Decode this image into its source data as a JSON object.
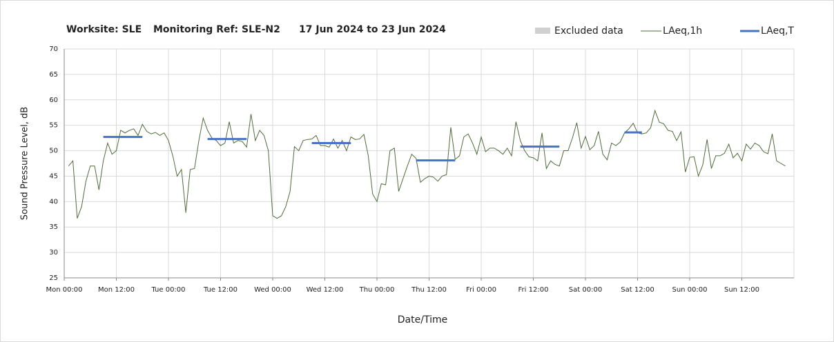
{
  "chart_data": {
    "type": "line",
    "title": [
      "Worksite: SLE",
      "Monitoring Ref: SLE-N2",
      "17 Jun 2024 to 23 Jun 2024"
    ],
    "x_label": "Date/Time",
    "y_label": "Sound Pressure Level, dB",
    "xlim": [
      0,
      168
    ],
    "xticks": [
      {
        "value": 0,
        "label": "Mon 00:00"
      },
      {
        "value": 12,
        "label": "Mon 12:00"
      },
      {
        "value": 24,
        "label": "Tue 00:00"
      },
      {
        "value": 36,
        "label": "Tue 12:00"
      },
      {
        "value": 48,
        "label": "Wed 00:00"
      },
      {
        "value": 60,
        "label": "Wed 12:00"
      },
      {
        "value": 72,
        "label": "Thu 00:00"
      },
      {
        "value": 84,
        "label": "Thu 12:00"
      },
      {
        "value": 96,
        "label": "Fri 00:00"
      },
      {
        "value": 108,
        "label": "Fri 12:00"
      },
      {
        "value": 120,
        "label": "Sat 00:00"
      },
      {
        "value": 132,
        "label": "Sat 12:00"
      },
      {
        "value": 144,
        "label": "Sun 00:00"
      },
      {
        "value": 156,
        "label": "Sun 12:00"
      }
    ],
    "ylim": [
      25,
      70
    ],
    "yticks": [
      25,
      30,
      35,
      40,
      45,
      50,
      55,
      60,
      65,
      70
    ],
    "grid": true,
    "excluded": {
      "name": "Excluded data",
      "color": "#d0d0d0"
    },
    "series": [
      {
        "name": "LAeq,1h",
        "color": "#4f6b3a",
        "x": [
          1,
          2,
          3,
          4,
          5,
          6,
          7,
          8,
          9,
          10,
          11,
          12,
          13,
          14,
          15,
          16,
          17,
          18,
          19,
          20,
          21,
          22,
          23,
          24,
          25,
          26,
          27,
          28,
          29,
          30,
          31,
          32,
          33,
          34,
          35,
          36,
          37,
          38,
          39,
          40,
          41,
          42,
          43,
          44,
          45,
          46,
          47,
          48,
          49,
          50,
          51,
          52,
          53,
          54,
          55,
          56,
          57,
          58,
          59,
          60,
          61,
          62,
          63,
          64,
          65,
          66,
          67,
          68,
          69,
          70,
          71,
          72,
          73,
          74,
          75,
          76,
          77,
          78,
          79,
          80,
          81,
          82,
          83,
          84,
          85,
          86,
          87,
          88,
          89,
          90,
          91,
          92,
          93,
          94,
          95,
          96,
          97,
          98,
          99,
          100,
          101,
          102,
          103,
          104,
          105,
          106,
          107,
          108,
          109,
          110,
          111,
          112,
          113,
          114,
          115,
          116,
          117,
          118,
          119,
          120,
          121,
          122,
          123,
          124,
          125,
          126,
          127,
          128,
          129,
          130,
          131,
          132,
          133,
          134,
          135,
          136,
          137,
          138,
          139,
          140,
          141,
          142,
          143,
          144,
          145,
          146,
          147,
          148,
          149,
          150,
          151,
          152,
          153,
          154,
          155,
          156,
          157,
          158,
          159,
          160,
          161,
          162,
          163,
          164,
          165,
          166
        ],
        "values": [
          47,
          48,
          36.7,
          39,
          44,
          47,
          47,
          42.3,
          48,
          51.5,
          49.3,
          50,
          54,
          53.5,
          54,
          54.3,
          53,
          55.2,
          53.8,
          53.3,
          53.6,
          53,
          53.5,
          52,
          49,
          45,
          46.3,
          37.8,
          46.3,
          46.5,
          52,
          56.4,
          54,
          52.5,
          52,
          51,
          51.5,
          55.7,
          51.5,
          52,
          51.8,
          50.7,
          57.2,
          52,
          54,
          53,
          50,
          37.2,
          36.7,
          37.2,
          39,
          42,
          50.8,
          50,
          52,
          52.2,
          52.3,
          53,
          51,
          51,
          50.7,
          52.3,
          50.5,
          52,
          50,
          52.7,
          52.2,
          52.3,
          53.2,
          49,
          41.5,
          40,
          43.5,
          43.3,
          50,
          50.5,
          42,
          44.5,
          47,
          49.3,
          48.5,
          43.8,
          44.5,
          45,
          44.8,
          44,
          45,
          45.3,
          54.6,
          48.3,
          49,
          52.7,
          53.3,
          51.5,
          49.3,
          52.7,
          49.8,
          50.5,
          50.5,
          50,
          49.3,
          50.5,
          49,
          55.7,
          52,
          50,
          48.8,
          48.6,
          48,
          53.5,
          46.5,
          48,
          47.3,
          47,
          50,
          50,
          52.5,
          55.5,
          50.5,
          52.8,
          50.2,
          51,
          53.8,
          49.3,
          48.2,
          51.5,
          51,
          51.7,
          53.5,
          54.3,
          55.4,
          53.5,
          53.3,
          53.5,
          54.5,
          57.9,
          55.6,
          55.3,
          54,
          53.8,
          52,
          53.7,
          45.8,
          48.7,
          48.8,
          45,
          47.2,
          52.2,
          46.5,
          49,
          49,
          49.5,
          51.3,
          48.6,
          49.5,
          48,
          51.3,
          50.3,
          51.5,
          51,
          49.8,
          49.4,
          53.3,
          48,
          47.5,
          47
        ]
      },
      {
        "name": "LAeq,T",
        "color": "#4472c4",
        "starts": [
          9,
          33,
          57,
          81,
          105,
          129
        ],
        "ends": [
          18,
          42,
          66,
          90,
          114,
          133
        ],
        "values": [
          52.7,
          52.3,
          51.5,
          48.1,
          50.8,
          53.6
        ]
      }
    ]
  }
}
